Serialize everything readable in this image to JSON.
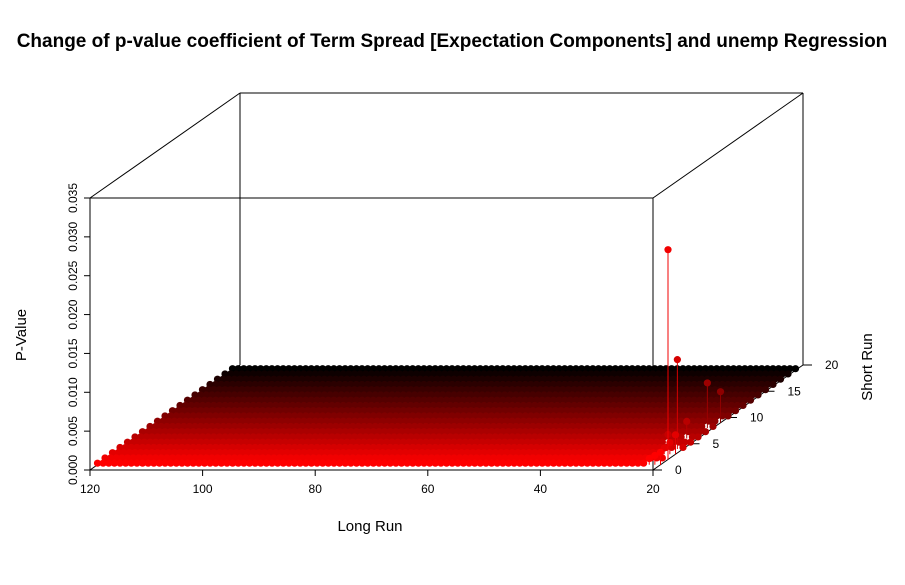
{
  "chart_data": {
    "type": "scatter3d",
    "title": "Change of p-value coefficient of Term Spread [Expectation Components] and unemp Regression",
    "xlabel": "Long Run",
    "ylabel": "Short Run",
    "zlabel": "P-Value",
    "xlim": [
      20,
      120
    ],
    "ylim": [
      0,
      20
    ],
    "zlim": [
      0,
      0.035
    ],
    "x_ticks": [
      "120",
      "100",
      "80",
      "60",
      "40",
      "20"
    ],
    "y_ticks": [
      "0",
      "5",
      "10",
      "15",
      "20"
    ],
    "z_ticks": [
      "0.000",
      "0.005",
      "0.010",
      "0.015",
      "0.020",
      "0.025",
      "0.030",
      "0.035"
    ],
    "grid": false,
    "type_of_drop_lines": "vertical",
    "color_scale": {
      "low_short_run": "#ff0000",
      "high_short_run": "#000000"
    },
    "surface": {
      "long_run_range": [
        20,
        120
      ],
      "short_run_range": [
        1,
        19
      ],
      "baseline_p_value": 0.0002,
      "note": "all other points near zero"
    },
    "notable_points": [
      {
        "long_run": 22,
        "short_run": 1,
        "p_value": 0.0008
      },
      {
        "long_run": 21,
        "short_run": 1,
        "p_value": 0.0012
      },
      {
        "long_run": 20,
        "short_run": 1,
        "p_value": 0.0016
      },
      {
        "long_run": 22,
        "short_run": 3,
        "p_value": 0.0008
      },
      {
        "long_run": 21,
        "short_run": 3,
        "p_value": 0.0015
      },
      {
        "long_run": 20,
        "short_run": 3,
        "p_value": 0.0025
      },
      {
        "long_run": 24,
        "short_run": 5,
        "p_value": 0.0012
      },
      {
        "long_run": 22,
        "short_run": 6,
        "p_value": 0.0022
      },
      {
        "long_run": 21,
        "short_run": 8,
        "p_value": 0.0058
      },
      {
        "long_run": 20,
        "short_run": 9,
        "p_value": 0.004
      },
      {
        "long_run": 21,
        "short_run": 4,
        "p_value": 0.0115
      },
      {
        "long_run": 20,
        "short_run": 2,
        "p_value": 0.027
      }
    ]
  }
}
